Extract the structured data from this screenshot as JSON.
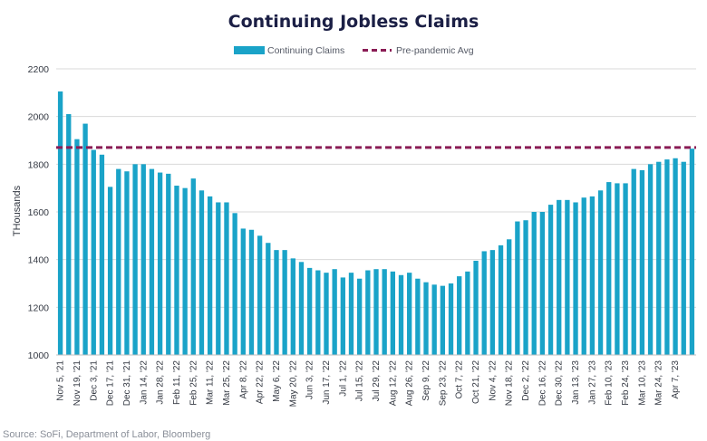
{
  "chart_data": {
    "type": "bar",
    "title": "Continuing Jobless Claims",
    "ylabel": "THousands",
    "xlabel": "",
    "ylim": [
      1000,
      2200
    ],
    "yticks": [
      1000,
      1200,
      1400,
      1600,
      1800,
      2000,
      2200
    ],
    "grid": true,
    "legend_position": "top",
    "source": "Source: SoFi, Department of Labor, Bloomberg",
    "colors": {
      "bars": "#1aa3c8",
      "reference_line": "#8a1c55",
      "grid": "#d9d9d9"
    },
    "tick_labels": [
      "Nov 5, '21",
      "Nov 19, '21",
      "Dec 3, '21",
      "Dec 17, '21",
      "Dec 31, '21",
      "Jan 14, '22",
      "Jan 28, '22",
      "Feb 11, '22",
      "Feb 25, '22",
      "Mar 11, '22",
      "Mar 25, '22",
      "Apr 8, '22",
      "Apr 22, '22",
      "May 6, '22",
      "May 20, '22",
      "Jun 3, '22",
      "Jun 17, '22",
      "Jul 1, '22",
      "Jul 15, '22",
      "Jul 29, '22",
      "Aug 12, '22",
      "Aug 26, '22",
      "Sep 9, '22",
      "Sep 23, '22",
      "Oct 7, '22",
      "Oct 21, '22",
      "Nov 4, '22",
      "Nov 18, '22",
      "Dec 2, '22",
      "Dec 16, '22",
      "Dec 30, '22",
      "Jan 13, '23",
      "Jan 27, '23",
      "Feb 10, '23",
      "Feb 24, '23",
      "Mar 10, '23",
      "Mar 24, '23",
      "Apr 7, '23"
    ],
    "series": [
      {
        "name": "Continuing Claims",
        "values": [
          2105,
          2010,
          1905,
          1970,
          1860,
          1840,
          1705,
          1780,
          1770,
          1800,
          1800,
          1780,
          1765,
          1760,
          1710,
          1700,
          1740,
          1690,
          1665,
          1640,
          1640,
          1595,
          1530,
          1525,
          1500,
          1470,
          1440,
          1440,
          1405,
          1390,
          1365,
          1355,
          1345,
          1360,
          1325,
          1345,
          1320,
          1355,
          1360,
          1360,
          1350,
          1335,
          1345,
          1320,
          1305,
          1295,
          1290,
          1300,
          1330,
          1350,
          1395,
          1435,
          1440,
          1460,
          1485,
          1560,
          1565,
          1600,
          1600,
          1630,
          1650,
          1650,
          1640,
          1660,
          1665,
          1690,
          1725,
          1720,
          1720,
          1780,
          1775,
          1800,
          1810,
          1820,
          1825,
          1810,
          1865
        ]
      },
      {
        "name": "Pre-pandemic Avg",
        "type": "line",
        "value": 1870
      }
    ]
  }
}
